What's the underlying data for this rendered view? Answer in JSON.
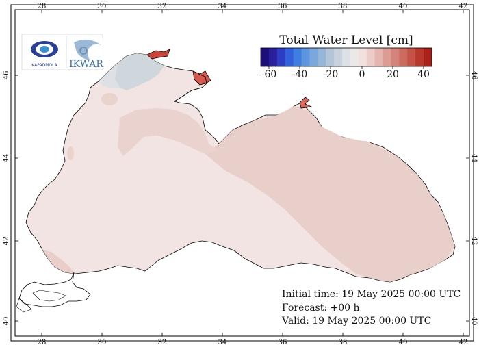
{
  "colorbar": {
    "title": "Total Water Level [cm]",
    "ticks": [
      "-60",
      "-40",
      "-20",
      "0",
      "20",
      "40"
    ],
    "colors": [
      "#1c0f7a",
      "#2a1f9a",
      "#2c3cc4",
      "#3260d8",
      "#3f7ee0",
      "#5d95e0",
      "#7aa8dc",
      "#97b7d8",
      "#b2c6d8",
      "#c8d2dc",
      "#dde1e6",
      "#ece8e8",
      "#f2e0de",
      "#ecccc8",
      "#e4b4ae",
      "#dc9c94",
      "#d4847a",
      "#cc6c60",
      "#c45246",
      "#b8382c",
      "#a82018"
    ]
  },
  "info": {
    "initial_time": "Initial time: 19 May 2025 00:00 UTC",
    "forecast": "Forecast: +00 h",
    "valid": "Valid: 19 May 2025 00:00 UTC"
  },
  "axes": {
    "lon_labels": [
      "28",
      "30",
      "32",
      "34",
      "36",
      "38",
      "40",
      "42"
    ],
    "lat_labels": [
      "40",
      "42",
      "44",
      "46"
    ]
  },
  "logos": {
    "left_text": "KAPADMOLA",
    "right_text": "IKWAR"
  },
  "map_colors": {
    "sea_base": "#f1e4e2",
    "east_warm": "#e9cfca",
    "north_cool": "#cfd6dc",
    "azov": "#d0453a"
  }
}
